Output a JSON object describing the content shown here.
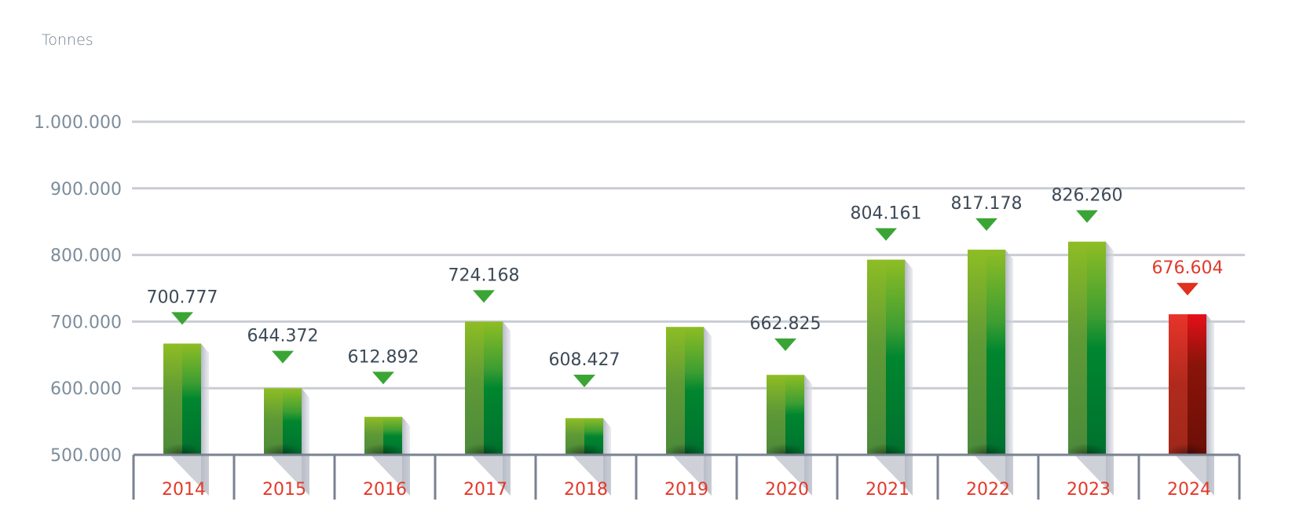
{
  "chart_data": {
    "type": "bar",
    "title": "",
    "unit_label": "Tonnes",
    "xlabel": "",
    "ylabel": "Tonnes",
    "ylim": [
      500000,
      1000000
    ],
    "yticks": [
      500000,
      600000,
      700000,
      800000,
      900000,
      1000000
    ],
    "ytick_labels": [
      "500.000",
      "600.000",
      "700.000",
      "800.000",
      "900.000",
      "1.000.000"
    ],
    "grid": true,
    "legend": "none",
    "categories": [
      "2014",
      "2015",
      "2016",
      "2017",
      "2018",
      "2019",
      "2020",
      "2021",
      "2022",
      "2023",
      "2024"
    ],
    "values": [
      700777,
      644372,
      612892,
      724168,
      608427,
      null,
      662825,
      804161,
      817178,
      826260,
      676604
    ],
    "value_labels": [
      "700.777",
      "644.372",
      "612.892",
      "724.168",
      "608.427",
      "",
      "662.825",
      "804.161",
      "817.178",
      "826.260",
      "676.604"
    ],
    "bar_levels_as_drawn": [
      667000,
      600000,
      557000,
      700000,
      555000,
      692000,
      620000,
      793000,
      808000,
      820000,
      711000
    ],
    "highlight": [
      "normal",
      "normal",
      "normal",
      "normal",
      "normal",
      "normal",
      "normal",
      "normal",
      "normal",
      "normal",
      "highlight"
    ],
    "colors": {
      "bar_light": "#8ebd24",
      "bar_mid": "#4b8a3a",
      "bar_dark": "#00712f",
      "bar_front_dark": "#007a32",
      "highlight_light": "#e8302a",
      "highlight_dark": "#6c0f08",
      "marker_normal": "#3aa535",
      "marker_highlight": "#e0301f",
      "grid": "#c9ccd3",
      "axis": "#7a8291",
      "year_text": "#e3392b",
      "value_text": "#3d4a57",
      "value_text_highlight": "#e03a2c"
    }
  }
}
